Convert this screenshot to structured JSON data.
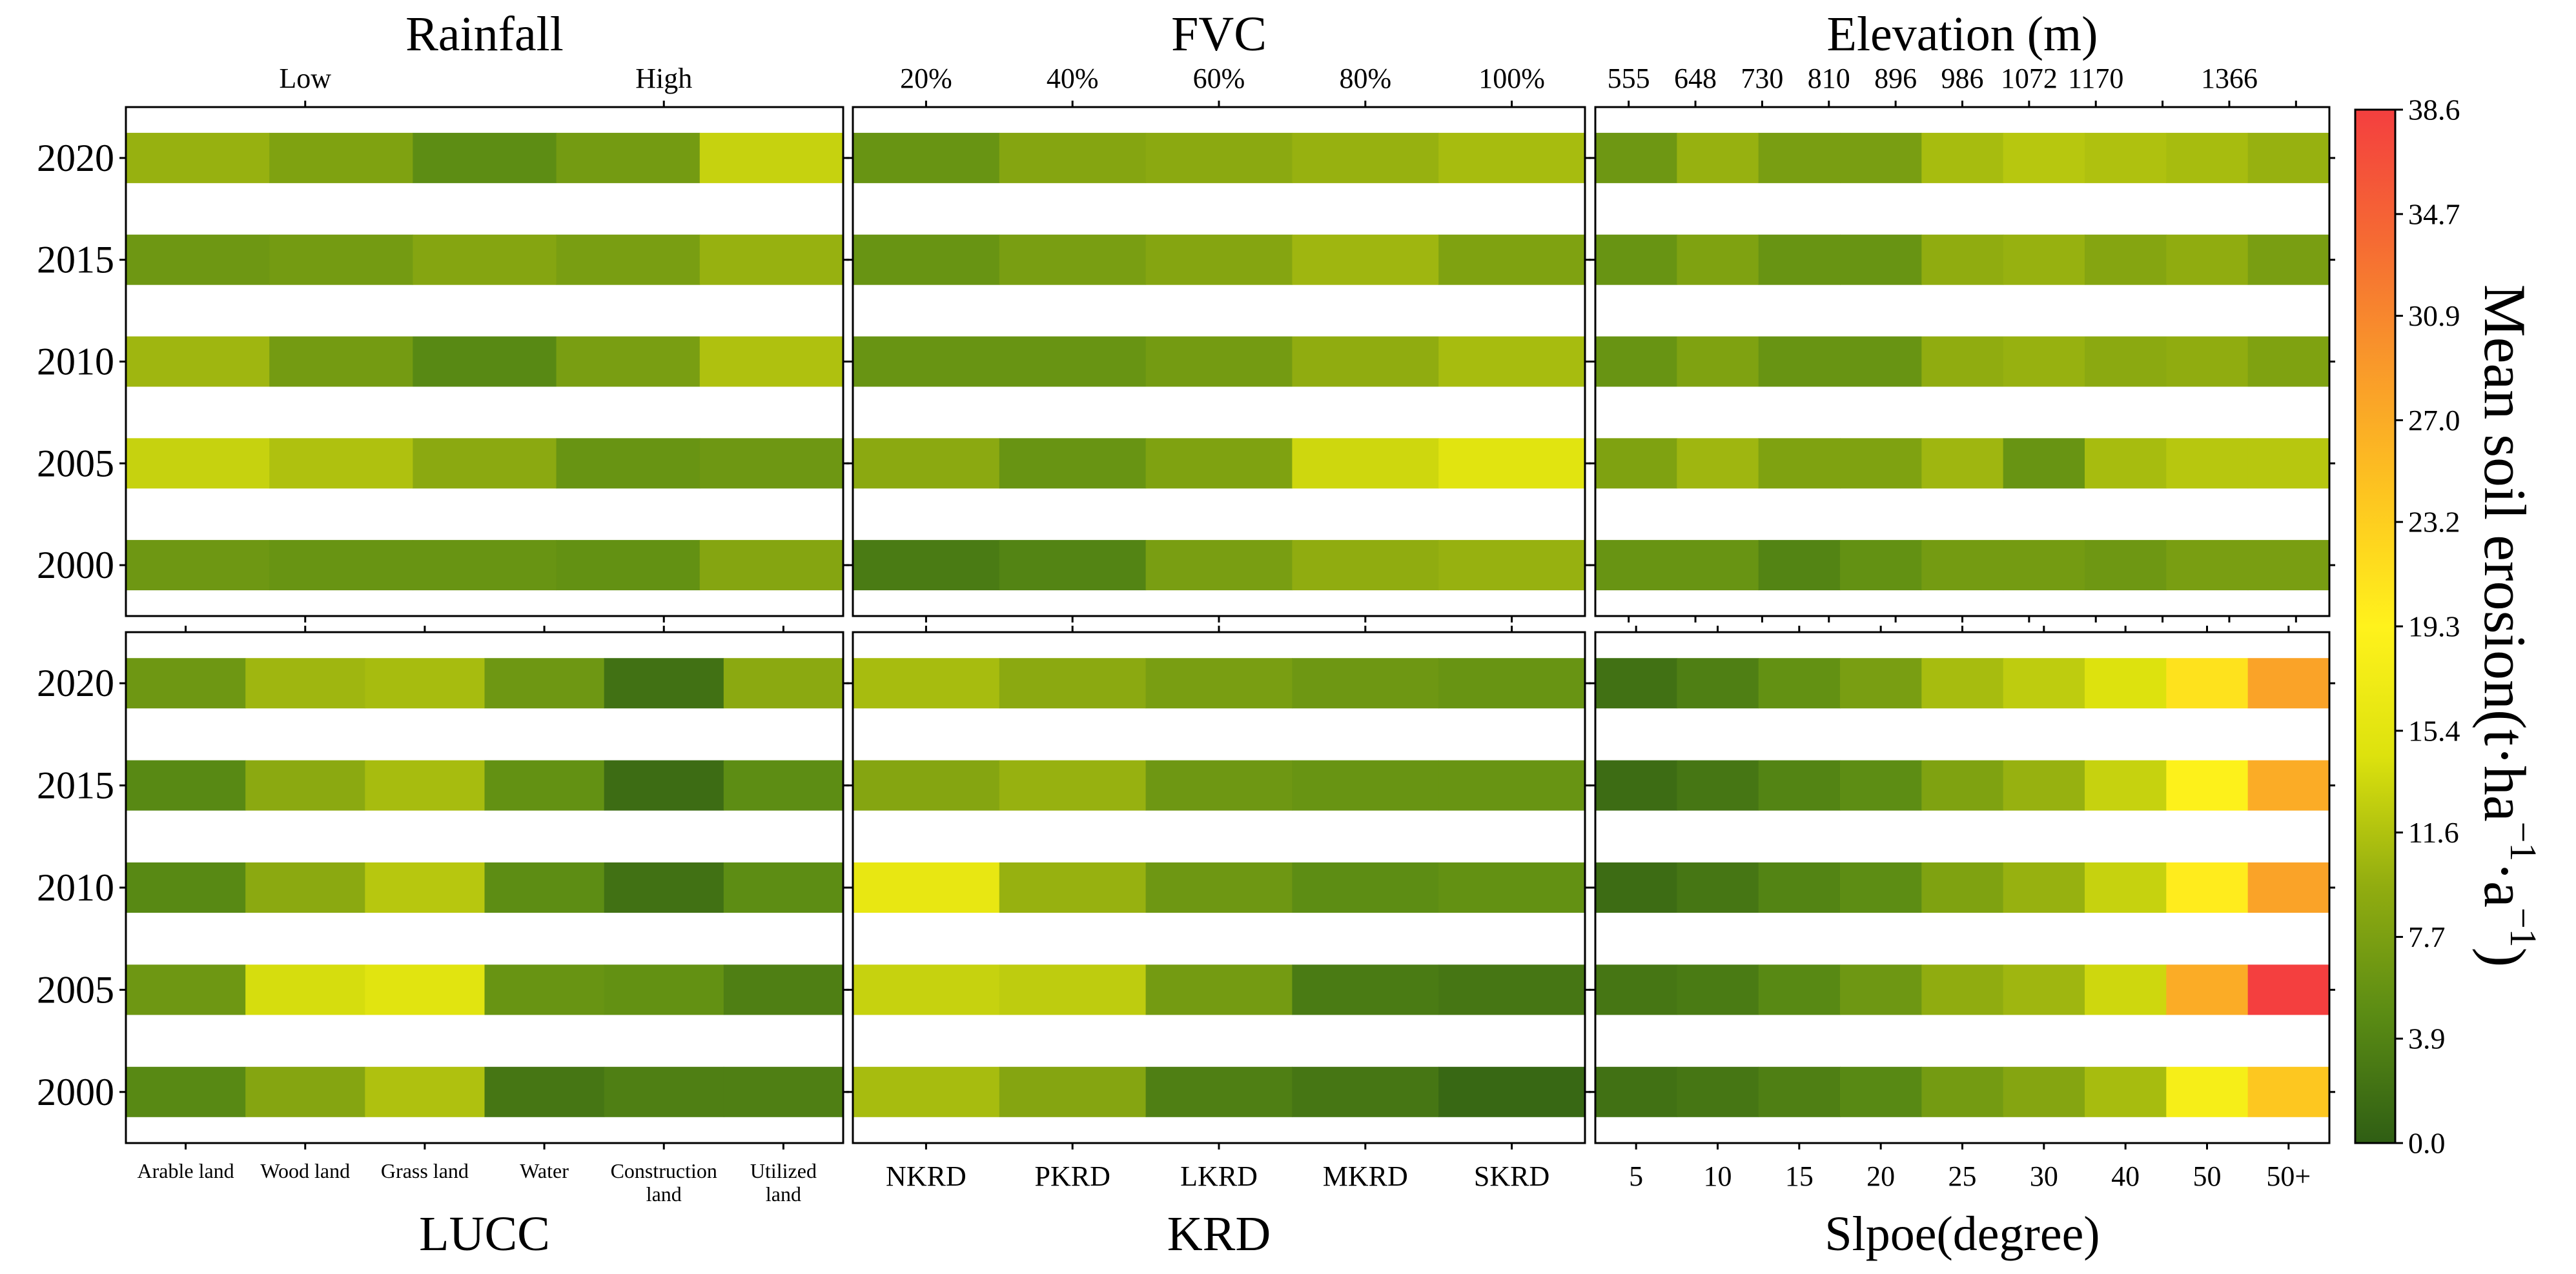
{
  "colorscale": {
    "stops": [
      "#2f5e14",
      "#5b8c14",
      "#92ad10",
      "#dde20e",
      "#fff21c",
      "#fdc620",
      "#f99a2a",
      "#f56a33",
      "#f43f3f"
    ],
    "min": 0,
    "max": 38.6
  },
  "chart_data": [
    {
      "type": "heatmap",
      "title": "Rainfall",
      "columns": [
        "Low",
        "",
        "",
        "",
        "High"
      ],
      "top_tick_labels": [
        "Low",
        "High"
      ],
      "rows": [
        "2020",
        "2015",
        "2010",
        "2005",
        "2000"
      ],
      "values": [
        [
          10.0,
          8.0,
          5.0,
          7.0,
          13.0
        ],
        [
          6.5,
          7.0,
          8.5,
          7.5,
          10.0
        ],
        [
          10.5,
          7.0,
          4.5,
          7.5,
          11.5
        ],
        [
          13.0,
          11.5,
          9.0,
          6.0,
          6.5
        ],
        [
          6.5,
          6.0,
          6.0,
          5.5,
          8.5
        ]
      ]
    },
    {
      "type": "heatmap",
      "title": "FVC",
      "columns": [
        "20%",
        "40%",
        "60%",
        "80%",
        "100%"
      ],
      "rows": [
        "2020",
        "2015",
        "2010",
        "2005",
        "2000"
      ],
      "values": [
        [
          6.0,
          8.5,
          9.0,
          10.0,
          11.0
        ],
        [
          6.0,
          7.5,
          8.5,
          10.5,
          8.0
        ],
        [
          6.0,
          6.0,
          7.0,
          9.5,
          11.0
        ],
        [
          9.0,
          6.0,
          8.0,
          13.5,
          15.0
        ],
        [
          3.0,
          4.0,
          7.5,
          9.5,
          10.0
        ]
      ]
    },
    {
      "type": "heatmap",
      "title": "Elevation (m)",
      "columns": [
        "555",
        "648",
        "730",
        "810",
        "896",
        "986",
        "1072",
        "1170",
        "1366"
      ],
      "top_tick_labels": [
        "555",
        "648",
        "730",
        "810",
        "896",
        "986",
        "1072",
        "1170",
        "",
        "1366",
        ""
      ],
      "rows": [
        "2020",
        "2015",
        "2010",
        "2005",
        "2000"
      ],
      "values": [
        [
          6.5,
          10.0,
          7.5,
          7.5,
          11.0,
          12.0,
          11.5,
          11.0,
          10.0
        ],
        [
          6.0,
          8.0,
          6.0,
          6.0,
          9.5,
          10.0,
          8.5,
          9.5,
          7.5
        ],
        [
          6.0,
          8.0,
          6.0,
          6.0,
          9.5,
          10.0,
          9.0,
          9.5,
          8.0
        ],
        [
          8.0,
          10.5,
          8.0,
          8.0,
          10.5,
          6.0,
          11.0,
          12.0,
          12.0
        ],
        [
          6.0,
          6.0,
          4.0,
          5.5,
          7.0,
          7.0,
          6.5,
          7.5,
          7.5
        ]
      ]
    },
    {
      "type": "heatmap",
      "title": "LUCC",
      "columns": [
        "Arable land",
        "Wood land",
        "Grass land",
        "Water",
        "Construction\nland",
        "Utilized\nland"
      ],
      "rows": [
        "2020",
        "2015",
        "2010",
        "2005",
        "2000"
      ],
      "values": [
        [
          6.5,
          10.5,
          11.0,
          6.5,
          2.0,
          9.0
        ],
        [
          4.5,
          9.0,
          11.0,
          5.5,
          1.5,
          5.0
        ],
        [
          4.5,
          9.0,
          12.0,
          5.0,
          2.0,
          5.0
        ],
        [
          6.5,
          14.0,
          15.0,
          6.0,
          5.5,
          3.5
        ],
        [
          4.5,
          8.5,
          11.5,
          2.5,
          3.5,
          3.5
        ]
      ]
    },
    {
      "type": "heatmap",
      "title": "KRD",
      "columns": [
        "NKRD",
        "PKRD",
        "LKRD",
        "MKRD",
        "SKRD"
      ],
      "rows": [
        "2020",
        "2015",
        "2010",
        "2005",
        "2000"
      ],
      "values": [
        [
          11.0,
          9.0,
          7.5,
          6.5,
          6.0
        ],
        [
          8.5,
          10.0,
          6.5,
          6.0,
          6.0
        ],
        [
          16.0,
          10.0,
          6.5,
          5.0,
          5.5
        ],
        [
          13.0,
          12.5,
          7.0,
          3.0,
          2.5
        ],
        [
          11.0,
          8.5,
          3.5,
          2.5,
          1.0
        ]
      ]
    },
    {
      "type": "heatmap",
      "title": "Slpoe(degree)",
      "columns": [
        "5",
        "10",
        "15",
        "20",
        "25",
        "30",
        "40",
        "50",
        "50+"
      ],
      "rows": [
        "2020",
        "2015",
        "2010",
        "2005",
        "2000"
      ],
      "values": [
        [
          2.0,
          3.5,
          5.5,
          7.5,
          11.0,
          12.5,
          14.5,
          21.0,
          28.0
        ],
        [
          1.5,
          2.5,
          4.0,
          5.0,
          8.0,
          10.0,
          13.0,
          19.0,
          27.0
        ],
        [
          1.5,
          2.5,
          4.0,
          5.0,
          8.0,
          10.0,
          13.0,
          20.0,
          28.0
        ],
        [
          2.5,
          3.0,
          4.5,
          6.5,
          9.5,
          10.5,
          13.5,
          27.0,
          38.6
        ],
        [
          2.0,
          2.5,
          3.5,
          4.5,
          7.0,
          8.5,
          11.0,
          18.0,
          24.0
        ]
      ]
    }
  ],
  "colorbar": {
    "ticks": [
      "38.6",
      "34.7",
      "30.9",
      "27.0",
      "23.2",
      "19.3",
      "15.4",
      "11.6",
      "7.7",
      "3.9",
      "0.0"
    ],
    "label": "Mean soil erosion(t·ha",
    "label_sup1": "−1",
    "label_mid": "·a",
    "label_sup2": "−1",
    "label_end": ")"
  }
}
